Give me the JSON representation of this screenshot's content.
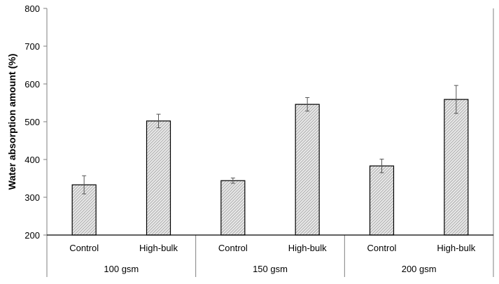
{
  "chart_data": {
    "type": "bar",
    "title": "",
    "ylabel": "Water absorption amount (%)",
    "xlabel": "",
    "ylim": [
      200,
      800
    ],
    "yticks": [
      200,
      300,
      400,
      500,
      600,
      700,
      800
    ],
    "grid": false,
    "groups": [
      {
        "label": "100 gsm",
        "bars": [
          {
            "label": "Control",
            "value": 333,
            "error": 24
          },
          {
            "label": "High-bulk",
            "value": 502,
            "error": 18
          }
        ]
      },
      {
        "label": "150 gsm",
        "bars": [
          {
            "label": "Control",
            "value": 344,
            "error": 7
          },
          {
            "label": "High-bulk",
            "value": 546,
            "error": 18
          }
        ]
      },
      {
        "label": "200 gsm",
        "bars": [
          {
            "label": "Control",
            "value": 383,
            "error": 18
          },
          {
            "label": "High-bulk",
            "value": 559,
            "error": 37
          }
        ]
      }
    ],
    "bar_fill": "hatched",
    "colors": {
      "bar_edge": "#000000",
      "hatch": "#7f7f7f",
      "axis": "#7f7f7f"
    }
  }
}
